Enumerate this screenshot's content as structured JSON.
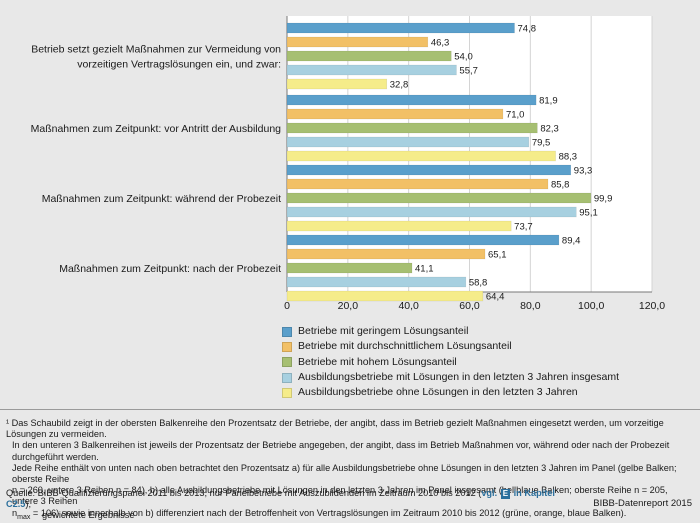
{
  "chart_data": {
    "type": "bar",
    "orientation": "horizontal",
    "categories": [
      "Betrieb setzt gezielt Maßnahmen zur Vermeidung von vorzeitigen Vertragslösungen ein, und zwar:",
      "Maßnahmen zum Zeitpunkt: vor Antritt der Ausbildung",
      "Maßnahmen zum Zeitpunkt: während der Probezeit",
      "Maßnahmen zum Zeitpunkt: nach der Probezeit"
    ],
    "category_lines": [
      [
        "Betrieb setzt gezielt Maßnahmen zur Vermeidung von",
        "vorzeitigen Vertragslösungen ein, und zwar:"
      ],
      [
        "Maßnahmen zum Zeitpunkt: vor Antritt der Ausbildung"
      ],
      [
        "Maßnahmen zum Zeitpunkt: während der Probezeit"
      ],
      [
        "Maßnahmen zum Zeitpunkt: nach der Probezeit"
      ]
    ],
    "series": [
      {
        "name": "Betriebe mit geringem Lösungsanteil",
        "color": "#5a9fcb",
        "values": [
          74.8,
          81.9,
          93.3,
          89.4
        ],
        "labels": [
          "74,8",
          "81,9",
          "93,3",
          "89,4"
        ]
      },
      {
        "name": "Betriebe mit durchschnittlichem Lösungsanteil",
        "color": "#f2c066",
        "values": [
          46.3,
          71.0,
          85.8,
          65.1
        ],
        "labels": [
          "46,3",
          "71,0",
          "85,8",
          "65,1"
        ]
      },
      {
        "name": "Betriebe mit hohem Lösungsanteil",
        "color": "#a6bf72",
        "values": [
          54.0,
          82.3,
          99.9,
          41.1
        ],
        "labels": [
          "54,0",
          "82,3",
          "99,9",
          "41,1"
        ]
      },
      {
        "name": "Ausbildungsbetriebe mit Lösungen in den letzten 3 Jahren insgesamt",
        "color": "#a7d0e0",
        "values": [
          55.7,
          79.5,
          95.1,
          58.8
        ],
        "labels": [
          "55,7",
          "79,5",
          "95,1",
          "58,8"
        ]
      },
      {
        "name": "Ausbildungsbetriebe ohne Lösungen in den letzten 3 Jahren",
        "color": "#f5ec8a",
        "values": [
          32.8,
          88.3,
          73.7,
          64.4
        ],
        "labels": [
          "32,8",
          "88,3",
          "73,7",
          "64,4"
        ]
      }
    ],
    "xlim": [
      0,
      120
    ],
    "xticks": [
      0,
      20,
      40,
      60,
      80,
      100,
      120
    ],
    "xtick_labels": [
      "0",
      "20,0",
      "40,0",
      "60,0",
      "80,0",
      "100,0",
      "120,0"
    ],
    "grid": true,
    "legend_position": "bottom-center"
  },
  "footnote": [
    "¹ Das Schaubild zeigt in der obersten Balkenreihe den Prozentsatz der Betriebe, der angibt, dass im Betrieb gezielt Maßnahmen eingesetzt werden, um vorzeitige Lösungen zu vermeiden.",
    "In den unteren 3 Balkenreihen ist jeweils der Prozentsatz der Betriebe angegeben, der angibt, dass im Betrieb Maßnahmen vor, während oder nach der Probezeit durchgeführt werden.",
    "Jede Reihe enthält von unten nach oben betrachtet den Prozentsatz a) für alle Ausbildungsbetriebe ohne Lösungen in den letzten 3 Jahren im Panel (gelbe Balken; oberste Reihe",
    "n = 260, untere 3 Reihen n = 84), b) alle Ausbildungsbetriebe mit Lösungen in den letzten 3 Jahren im Panel insgesamt (hellblaue Balken; oberste Reihe n = 205, untere 3 Reihen",
    "n",
    "max",
    " = 106) sowie innerhalb von b) differenziert nach der Betroffenheit von Vertragslösungen im Zeitraum 2010 bis 2012 (grüne, orange, blaue Balken)."
  ],
  "source": {
    "prefix": "Quelle:  BIBB-Qualifizierungspanel 2011 bis 2013, nur Panelbetriebe mit Auszubildenden im Zeitraum 2010 bis 2012 (",
    "ref_pre": "vgl.",
    "ref_box": "E",
    "ref_post": "in Kapitel C2.5",
    "suffix": "),",
    "line2": "gewichtete Ergebnisse"
  },
  "credit": "BIBB-Datenreport 2015"
}
